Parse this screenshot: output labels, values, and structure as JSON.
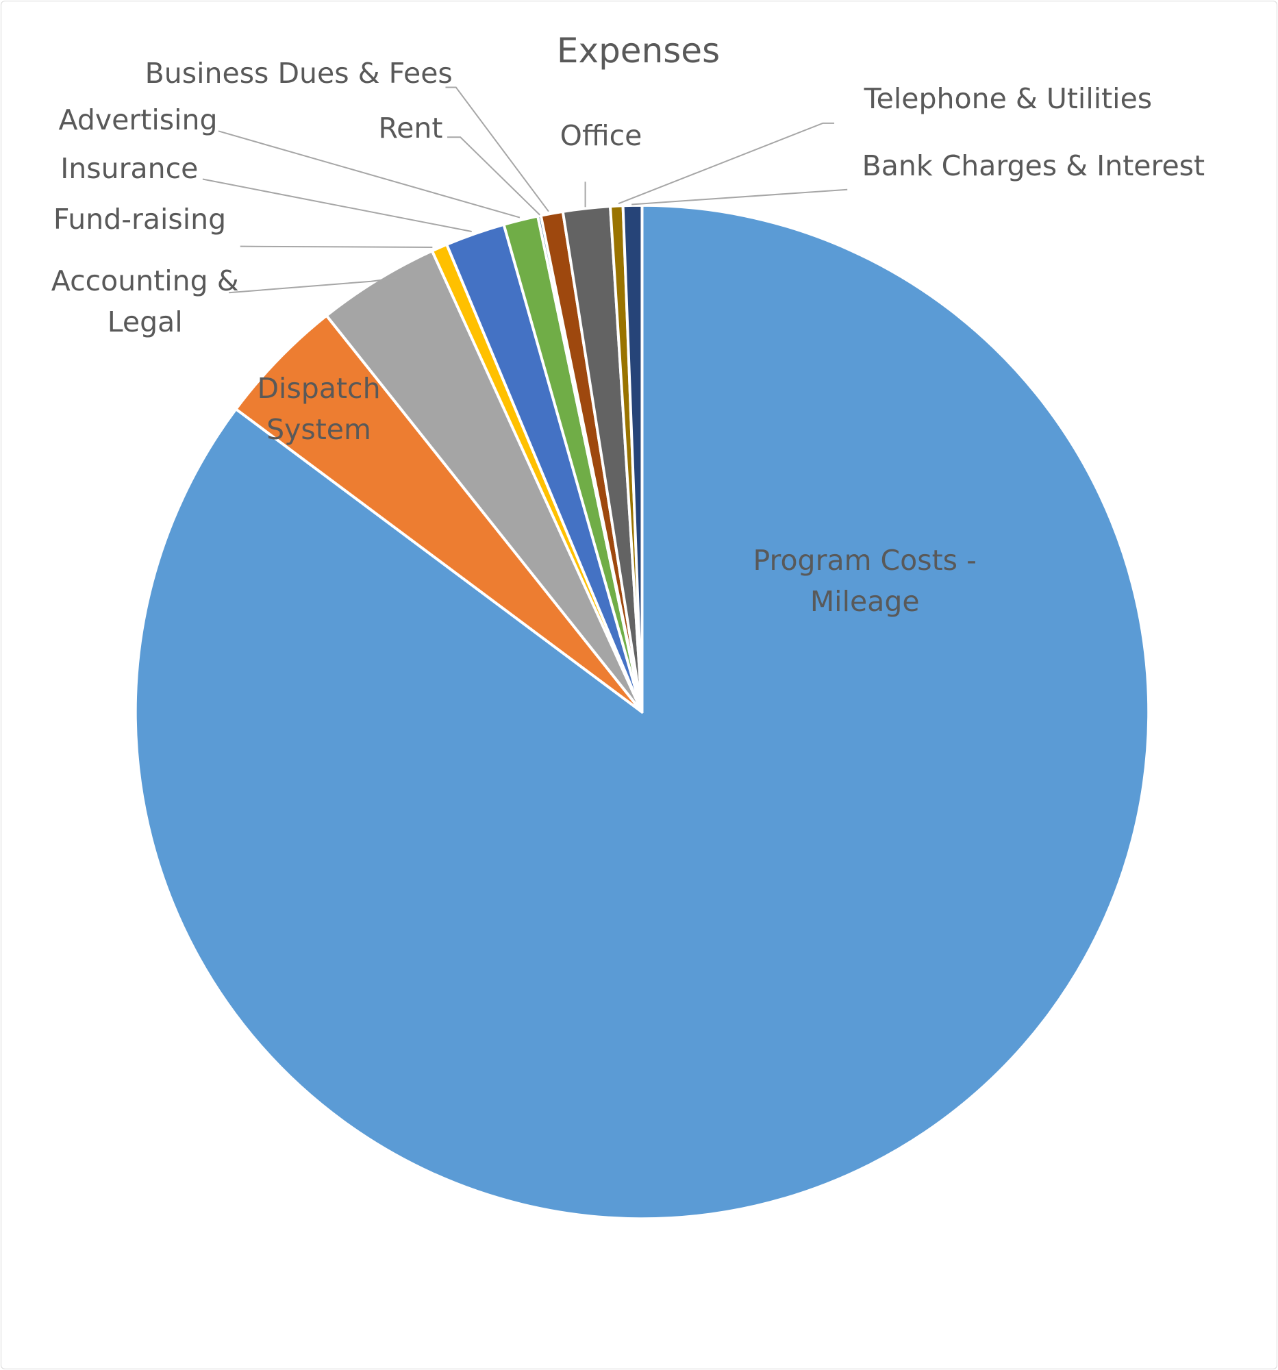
{
  "chart_data": {
    "type": "pie",
    "title": "Expenses",
    "categories": [
      "Program Costs - Mileage",
      "Dispatch System",
      "Accounting & Legal",
      "Fund-raising",
      "Insurance",
      "Advertising",
      "Rent",
      "Business Dues & Fees",
      "Office",
      "Telephone & Utilities",
      "Bank Charges & Interest"
    ],
    "values": [
      85.2,
      4.1,
      3.9,
      0.5,
      1.9,
      1.1,
      0.1,
      0.7,
      1.5,
      0.4,
      0.6
    ],
    "colors": [
      "#5b9bd5",
      "#ed7d31",
      "#a5a5a5",
      "#ffc000",
      "#4472c4",
      "#70ad47",
      "#255e91",
      "#9e480e",
      "#636363",
      "#997300",
      "#264478"
    ]
  }
}
